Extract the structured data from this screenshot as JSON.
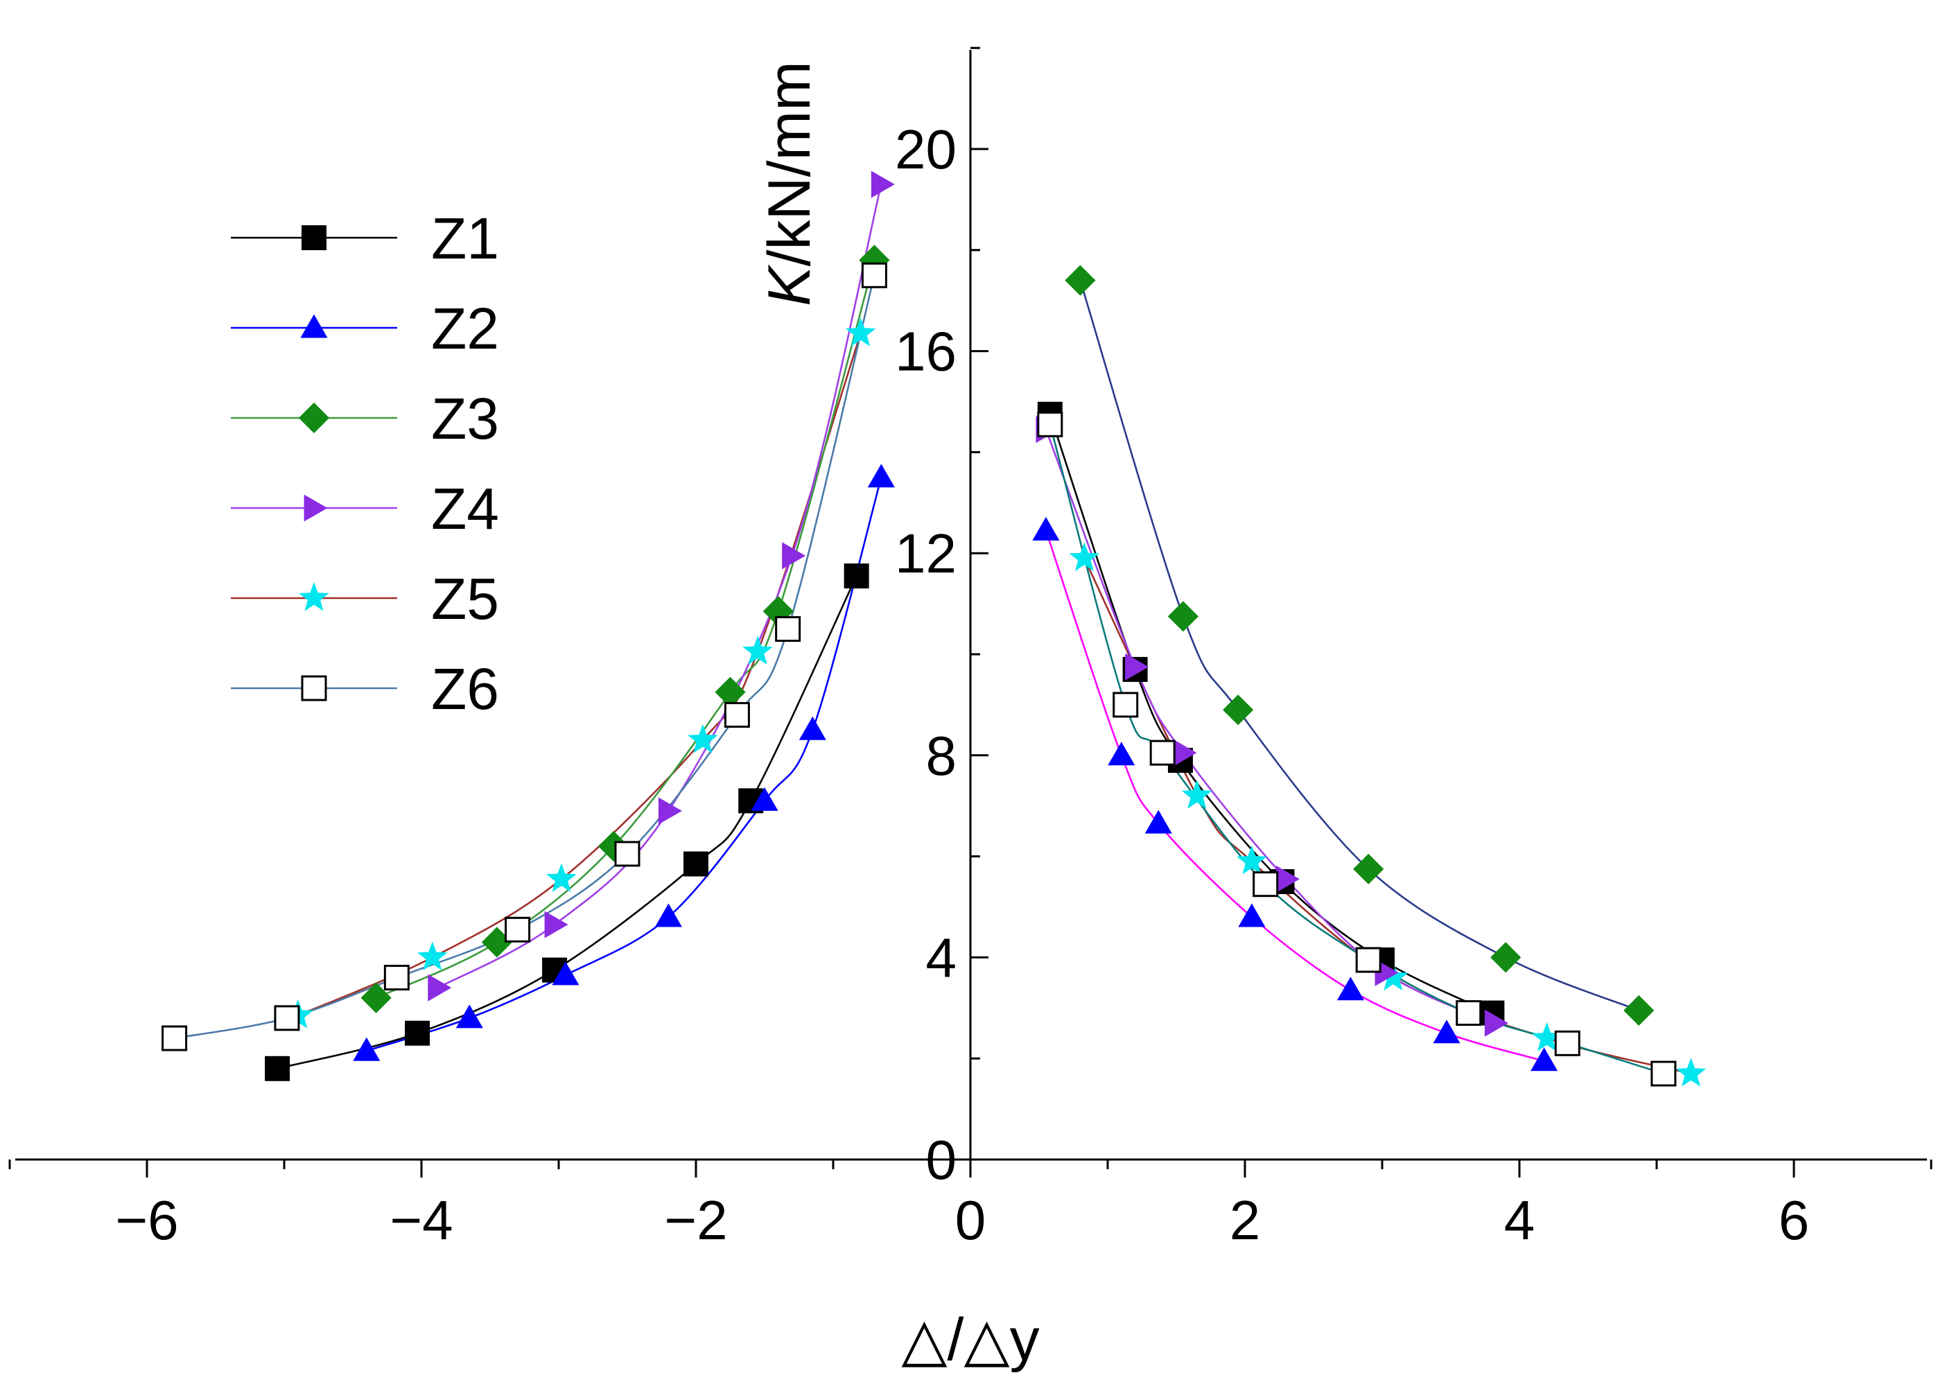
{
  "chart_data": {
    "type": "line",
    "title": "",
    "xlabel": "△/△y",
    "ylabel_italic": "K",
    "ylabel_rest": "/kN/mm",
    "xlim": [
      -7,
      7
    ],
    "ylim": [
      0,
      22
    ],
    "xticks": [
      -6,
      -4,
      -2,
      0,
      2,
      4,
      6
    ],
    "yticks": [
      0,
      4,
      8,
      12,
      16,
      20
    ],
    "xtick_labels": [
      "−6",
      "−4",
      "−2",
      "0",
      "2",
      "4",
      "6"
    ],
    "ytick_labels": [
      "0",
      "4",
      "8",
      "12",
      "16",
      "20"
    ],
    "legend_position": "top-left",
    "series": [
      {
        "name": "Z1",
        "marker": "square-filled",
        "color": "#000000",
        "line_color": "#000000",
        "branches": [
          {
            "x": [
              -5.05,
              -4.03,
              -3.03,
              -2.0,
              -1.6,
              -0.83
            ],
            "y": [
              1.8,
              2.5,
              3.75,
              5.85,
              7.1,
              11.55
            ]
          },
          {
            "x": [
              0.58,
              1.2,
              1.53,
              2.27,
              3.0,
              3.8
            ],
            "y": [
              14.75,
              9.7,
              7.9,
              5.5,
              3.95,
              2.9
            ]
          }
        ]
      },
      {
        "name": "Z2",
        "marker": "triangle-up",
        "color": "#0000ff",
        "line_color": "#0000ff",
        "branches": [
          {
            "x": [
              -4.4,
              -3.65,
              -2.95,
              -2.2,
              -1.5,
              -1.15,
              -0.65
            ],
            "y": [
              2.15,
              2.8,
              3.65,
              4.8,
              7.1,
              8.5,
              13.5
            ]
          },
          {
            "x": [
              0.55,
              1.1,
              1.37,
              2.05,
              2.77,
              3.47,
              4.18
            ],
            "y": [
              12.45,
              8.0,
              6.65,
              4.8,
              3.35,
              2.5,
              1.95
            ]
          }
        ],
        "right_line_color": "#ff00ff"
      },
      {
        "name": "Z3",
        "marker": "diamond",
        "color": "#138a13",
        "line_color": "#3c9a3c",
        "branches": [
          {
            "x": [
              -4.33,
              -3.45,
              -2.6,
              -1.75,
              -1.4,
              -0.7
            ],
            "y": [
              3.2,
              4.3,
              6.2,
              9.25,
              10.85,
              17.8
            ]
          },
          {
            "x": [
              0.8,
              1.55,
              1.95,
              2.9,
              3.9,
              4.87
            ],
            "y": [
              17.4,
              10.75,
              8.9,
              5.75,
              4.0,
              2.95
            ]
          }
        ],
        "right_line_color": "#2a3a8c"
      },
      {
        "name": "Z4",
        "marker": "triangle-right",
        "color": "#8a2be2",
        "line_color": "#a040e8",
        "branches": [
          {
            "x": [
              -3.88,
              -3.03,
              -2.2,
              -1.3,
              -0.65
            ],
            "y": [
              3.4,
              4.65,
              6.9,
              11.95,
              19.3
            ]
          },
          {
            "x": [
              0.55,
              1.2,
              1.55,
              2.3,
              3.02,
              3.82
            ],
            "y": [
              14.45,
              9.75,
              8.05,
              5.55,
              3.7,
              2.7
            ]
          }
        ]
      },
      {
        "name": "Z5",
        "marker": "star",
        "color": "#00e5ee",
        "line_color": "#a0302a",
        "branches": [
          {
            "x": [
              -4.9,
              -3.92,
              -2.98,
              -1.95,
              -1.55,
              -0.8
            ],
            "y": [
              2.85,
              4.0,
              5.55,
              8.3,
              10.05,
              16.35
            ]
          },
          {
            "x": [
              0.83,
              1.65,
              2.05,
              3.08,
              4.2,
              5.25
            ],
            "y": [
              11.9,
              7.2,
              5.9,
              3.6,
              2.4,
              1.7
            ]
          }
        ]
      },
      {
        "name": "Z6",
        "marker": "square-open",
        "color": "#000000",
        "line_color": "#4a7aa8",
        "branches": [
          {
            "x": [
              -5.8,
              -4.98,
              -4.18,
              -3.3,
              -2.5,
              -1.7,
              -1.33,
              -0.7
            ],
            "y": [
              2.4,
              2.8,
              3.6,
              4.55,
              6.05,
              8.8,
              10.5,
              17.5
            ]
          },
          {
            "x": [
              0.58,
              1.13,
              1.4,
              2.15,
              2.9,
              3.63,
              4.35,
              5.05
            ],
            "y": [
              14.55,
              9.0,
              8.05,
              5.45,
              3.95,
              2.9,
              2.3,
              1.7
            ]
          }
        ],
        "right_line_color": "#0a7a7a"
      }
    ]
  }
}
